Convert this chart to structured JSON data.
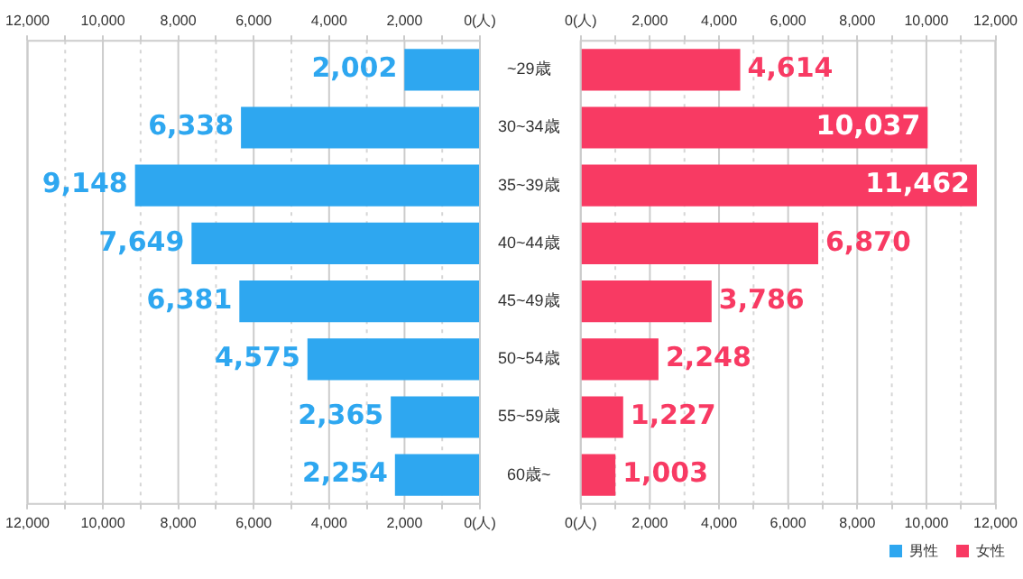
{
  "chart_data": [
    {
      "type": "bar",
      "orientation": "horizontal",
      "categories": [
        "~29歳",
        "30~34歳",
        "35~39歳",
        "40~44歳",
        "45~49歳",
        "50~54歳",
        "55~59歳",
        "60歳~"
      ],
      "series": [
        {
          "name": "男性",
          "color": "#2ea7f0",
          "values": [
            2002,
            6338,
            9148,
            7649,
            6381,
            4575,
            2365,
            2254
          ],
          "value_labels": [
            "2,002",
            "6,338",
            "9,148",
            "7,649",
            "6,381",
            "4,575",
            "2,365",
            "2,254"
          ]
        }
      ],
      "xlim": [
        12000,
        0
      ],
      "xticks": [
        {
          "value": 12000,
          "label": "12,000"
        },
        {
          "value": 11000,
          "label": null
        },
        {
          "value": 10000,
          "label": "10,000"
        },
        {
          "value": 9000,
          "label": null
        },
        {
          "value": 8000,
          "label": "8,000"
        },
        {
          "value": 7000,
          "label": null
        },
        {
          "value": 6000,
          "label": "6,000"
        },
        {
          "value": 5000,
          "label": null
        },
        {
          "value": 4000,
          "label": "4,000"
        },
        {
          "value": 3000,
          "label": null
        },
        {
          "value": 2000,
          "label": "2,000"
        },
        {
          "value": 1000,
          "label": null
        },
        {
          "value": 0,
          "label": "0(人)"
        }
      ],
      "x2lim": [
        12000,
        0
      ],
      "x2ticks": [
        {
          "value": 12000,
          "label": "12,000"
        },
        {
          "value": 11000,
          "label": null
        },
        {
          "value": 10000,
          "label": "10,000"
        },
        {
          "value": 9000,
          "label": null
        },
        {
          "value": 8000,
          "label": "8,000"
        },
        {
          "value": 7000,
          "label": null
        },
        {
          "value": 6000,
          "label": "6,000"
        },
        {
          "value": 5000,
          "label": null
        },
        {
          "value": 4000,
          "label": "4,000"
        },
        {
          "value": 3000,
          "label": null
        },
        {
          "value": 2000,
          "label": "2,000"
        },
        {
          "value": 1000,
          "label": null
        },
        {
          "value": 0,
          "label": "0(人)"
        }
      ],
      "grid": "x",
      "legend": "bottom right"
    },
    {
      "type": "bar",
      "orientation": "horizontal",
      "categories": [
        null,
        null,
        null,
        null,
        null,
        null,
        null,
        null
      ],
      "series": [
        {
          "name": "女性",
          "color": "#f83a63",
          "values": [
            4614,
            10037,
            11462,
            6870,
            3786,
            2248,
            1227,
            1003
          ],
          "value_labels": [
            "4,614",
            "10,037",
            "11,462",
            "6,870",
            "3,786",
            "2,248",
            "1,227",
            "1,003"
          ]
        }
      ],
      "xlim": [
        0,
        12000
      ],
      "xticks": [
        {
          "value": 0,
          "label": "0(人)"
        },
        {
          "value": 1000,
          "label": null
        },
        {
          "value": 2000,
          "label": "2,000"
        },
        {
          "value": 3000,
          "label": null
        },
        {
          "value": 4000,
          "label": "4,000"
        },
        {
          "value": 5000,
          "label": null
        },
        {
          "value": 6000,
          "label": "6,000"
        },
        {
          "value": 7000,
          "label": null
        },
        {
          "value": 8000,
          "label": "8,000"
        },
        {
          "value": 9000,
          "label": null
        },
        {
          "value": 10000,
          "label": "10,000"
        },
        {
          "value": 11000,
          "label": null
        },
        {
          "value": 12000,
          "label": "12,000"
        }
      ],
      "x2lim": [
        0,
        12000
      ],
      "x2ticks": [
        {
          "value": 0,
          "label": "0(人)"
        },
        {
          "value": 1000,
          "label": null
        },
        {
          "value": 2000,
          "label": "2,000"
        },
        {
          "value": 3000,
          "label": null
        },
        {
          "value": 4000,
          "label": "4,000"
        },
        {
          "value": 5000,
          "label": null
        },
        {
          "value": 6000,
          "label": "6,000"
        },
        {
          "value": 7000,
          "label": null
        },
        {
          "value": 8000,
          "label": "8,000"
        },
        {
          "value": 9000,
          "label": null
        },
        {
          "value": 10000,
          "label": "10,000"
        },
        {
          "value": 11000,
          "label": null
        },
        {
          "value": 12000,
          "label": "12,000"
        }
      ],
      "tick_labels": "x",
      "grid": "x",
      "legend": "bottom right"
    }
  ]
}
